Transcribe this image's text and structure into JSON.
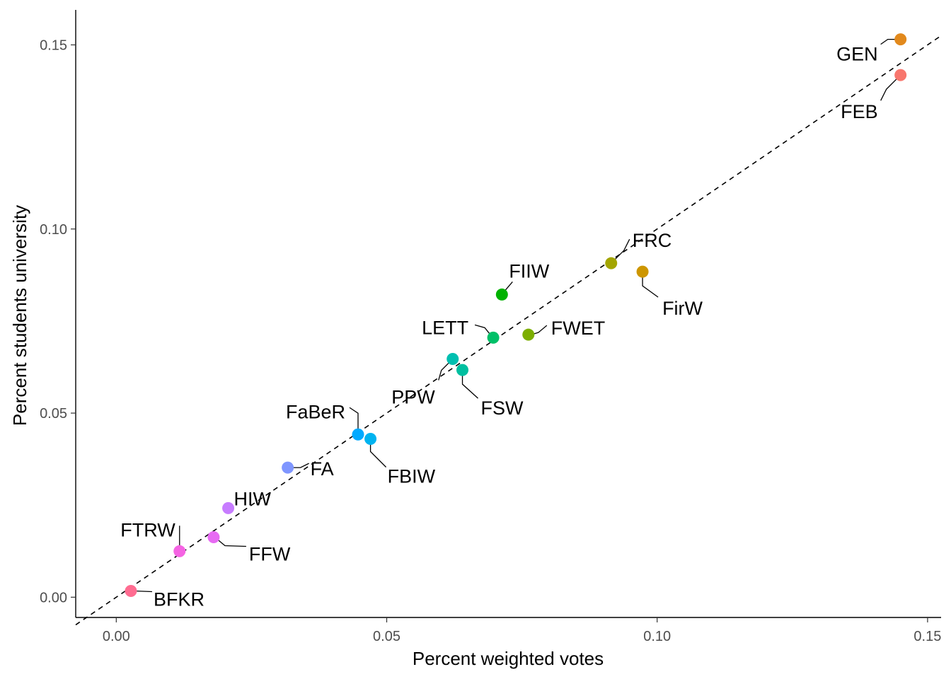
{
  "chart_data": {
    "type": "scatter",
    "xlabel": "Percent weighted votes",
    "ylabel": "Percent students university",
    "xlim": [
      -0.0075,
      0.1525
    ],
    "ylim": [
      -0.0055,
      0.1595
    ],
    "x_ticks": [
      {
        "value": 0.0,
        "label": "0.00"
      },
      {
        "value": 0.05,
        "label": "0.05"
      },
      {
        "value": 0.1,
        "label": "0.10"
      },
      {
        "value": 0.15,
        "label": "0.15"
      }
    ],
    "y_ticks": [
      {
        "value": 0.0,
        "label": "0.00"
      },
      {
        "value": 0.05,
        "label": "0.05"
      },
      {
        "value": 0.1,
        "label": "0.10"
      },
      {
        "value": 0.15,
        "label": "0.15"
      }
    ],
    "reference_line": {
      "slope": 1,
      "intercept": 0,
      "style": "dashed"
    },
    "grid": false,
    "legend": "none",
    "points": [
      {
        "label": "GEN",
        "x": 0.145,
        "y": 0.1515,
        "color": "#E2891C"
      },
      {
        "label": "FEB",
        "x": 0.145,
        "y": 0.1418,
        "color": "#F8766D"
      },
      {
        "label": "FRC",
        "x": 0.0915,
        "y": 0.0907,
        "color": "#A3A500"
      },
      {
        "label": "FirW",
        "x": 0.0973,
        "y": 0.0884,
        "color": "#CD9600"
      },
      {
        "label": "FIIW",
        "x": 0.0713,
        "y": 0.0822,
        "color": "#00B200"
      },
      {
        "label": "LETT",
        "x": 0.0697,
        "y": 0.0705,
        "color": "#00C068"
      },
      {
        "label": "FWET",
        "x": 0.0762,
        "y": 0.0713,
        "color": "#7CAE00"
      },
      {
        "label": "PPW",
        "x": 0.0622,
        "y": 0.0647,
        "color": "#00BFB0"
      },
      {
        "label": "FSW",
        "x": 0.064,
        "y": 0.0617,
        "color": "#00BFA0"
      },
      {
        "label": "FaBeR",
        "x": 0.0447,
        "y": 0.0442,
        "color": "#00A9FF"
      },
      {
        "label": "FBIW",
        "x": 0.047,
        "y": 0.043,
        "color": "#00B3F0"
      },
      {
        "label": "FA",
        "x": 0.0317,
        "y": 0.0352,
        "color": "#7F96FF"
      },
      {
        "label": "HIW",
        "x": 0.0207,
        "y": 0.0242,
        "color": "#C77CFF"
      },
      {
        "label": "FTRW",
        "x": 0.0117,
        "y": 0.0125,
        "color": "#F564E3"
      },
      {
        "label": "FFW",
        "x": 0.018,
        "y": 0.0163,
        "color": "#E76BF3"
      },
      {
        "label": "BFKR",
        "x": 0.0027,
        "y": 0.0017,
        "color": "#FF6C91"
      }
    ]
  }
}
